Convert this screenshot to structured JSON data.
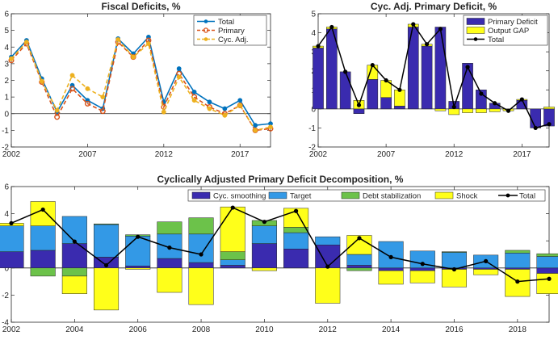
{
  "chart_data": [
    {
      "id": "fiscal",
      "type": "line",
      "title": "Fiscal Deficits, %",
      "x": [
        2002,
        2003,
        2004,
        2005,
        2006,
        2007,
        2008,
        2009,
        2010,
        2011,
        2012,
        2013,
        2014,
        2015,
        2016,
        2017,
        2018,
        2019
      ],
      "xticks": [
        2002,
        2007,
        2012,
        2017
      ],
      "xlim": [
        2002,
        2019
      ],
      "ylim": [
        -2,
        6
      ],
      "yticks": [
        -2,
        -1,
        0,
        1,
        2,
        3,
        4,
        5,
        6
      ],
      "grid": false,
      "legend_position": "top-right",
      "series": [
        {
          "name": "Total",
          "color": "#0072BD",
          "style": "solid",
          "marker": "dot",
          "values": [
            3.4,
            4.4,
            2.1,
            0.1,
            1.7,
            0.8,
            0.3,
            4.5,
            3.6,
            4.6,
            0.7,
            2.7,
            1.3,
            0.7,
            0.3,
            0.8,
            -0.7,
            -0.6
          ]
        },
        {
          "name": "Primary",
          "color": "#D95319",
          "style": "dashed",
          "marker": "ring",
          "values": [
            3.2,
            4.2,
            1.9,
            -0.2,
            1.5,
            0.6,
            0.15,
            4.3,
            3.4,
            4.4,
            0.4,
            2.4,
            1.0,
            0.4,
            0.0,
            0.5,
            -1.0,
            -0.9
          ]
        },
        {
          "name": "Cyc. Adj.",
          "color": "#EDB120",
          "style": "dashed",
          "marker": "dot",
          "values": [
            3.3,
            4.3,
            1.95,
            0.2,
            2.3,
            1.5,
            1.0,
            4.45,
            3.4,
            4.2,
            0.1,
            2.2,
            0.8,
            0.3,
            -0.1,
            0.5,
            -1.0,
            -0.8
          ]
        }
      ]
    },
    {
      "id": "cyc",
      "type": "bar",
      "stacked": true,
      "title": "Cyc. Adj. Primary Deficit, %",
      "x": [
        2002,
        2003,
        2004,
        2005,
        2006,
        2007,
        2008,
        2009,
        2010,
        2011,
        2012,
        2013,
        2014,
        2015,
        2016,
        2017,
        2018,
        2019
      ],
      "xticks": [
        2002,
        2007,
        2012,
        2017
      ],
      "xlim": [
        2002,
        2019
      ],
      "ylim": [
        -2,
        5
      ],
      "yticks": [
        -2,
        -1,
        0,
        1,
        2,
        3,
        4,
        5
      ],
      "grid": false,
      "legend_position": "top-right",
      "series": [
        {
          "name": "Primary Deficit",
          "color": "#3A2BAF",
          "values": [
            3.2,
            4.2,
            1.95,
            -0.25,
            1.55,
            0.6,
            0.15,
            4.3,
            3.3,
            4.3,
            0.4,
            2.4,
            1.0,
            0.3,
            0.0,
            0.45,
            -1.0,
            -0.9
          ]
        },
        {
          "name": "Output GAP",
          "color": "#FFFF1A",
          "values": [
            0.1,
            0.1,
            0.0,
            0.45,
            0.75,
            0.9,
            0.85,
            0.15,
            0.1,
            -0.1,
            -0.3,
            -0.2,
            -0.2,
            -0.15,
            -0.1,
            0.05,
            0.0,
            0.1
          ]
        }
      ],
      "line": {
        "name": "Total",
        "color": "#000000",
        "values": [
          3.3,
          4.3,
          1.95,
          0.2,
          2.3,
          1.5,
          1.0,
          4.45,
          3.4,
          4.2,
          0.1,
          2.2,
          0.8,
          0.3,
          -0.1,
          0.5,
          -1.0,
          -0.8
        ]
      }
    },
    {
      "id": "decomp",
      "type": "bar",
      "stacked": true,
      "title": "Cyclically Adjusted Primary Deficit Decomposition, %",
      "x": [
        2002,
        2003,
        2004,
        2005,
        2006,
        2007,
        2008,
        2009,
        2010,
        2011,
        2012,
        2013,
        2014,
        2015,
        2016,
        2017,
        2018,
        2019
      ],
      "xticks": [
        2002,
        2004,
        2006,
        2008,
        2010,
        2012,
        2014,
        2016,
        2018
      ],
      "xlim": [
        2002,
        2019
      ],
      "ylim": [
        -4,
        6
      ],
      "yticks": [
        -4,
        -2,
        0,
        2,
        4,
        6
      ],
      "grid": false,
      "legend_position": "top",
      "series": [
        {
          "name": "Cyc. smoothing",
          "color": "#3A2BAF",
          "values": [
            1.2,
            1.3,
            1.8,
            0.8,
            0.15,
            0.7,
            0.4,
            0.2,
            1.8,
            1.4,
            1.7,
            0.2,
            -0.2,
            -0.2,
            -0.1,
            -0.1,
            -0.1,
            -0.4
          ]
        },
        {
          "name": "Target",
          "color": "#3399E6",
          "values": [
            1.9,
            1.8,
            2.0,
            2.4,
            2.2,
            1.8,
            2.1,
            0.4,
            1.3,
            1.2,
            0.6,
            0.8,
            1.95,
            1.25,
            1.15,
            0.95,
            1.1,
            0.85
          ]
        },
        {
          "name": "Debt stabilization",
          "color": "#6CC24A",
          "values": [
            0.0,
            -0.6,
            -0.6,
            0.05,
            0.1,
            0.9,
            1.2,
            0.6,
            0.4,
            0.4,
            0.0,
            -0.2,
            0.0,
            0.0,
            0.05,
            0.0,
            0.2,
            0.2
          ]
        },
        {
          "name": "Shock",
          "color": "#FFFF1A",
          "values": [
            0.2,
            1.8,
            -1.3,
            -3.1,
            -0.1,
            -1.8,
            -2.7,
            3.3,
            -0.2,
            1.4,
            -2.6,
            1.4,
            -1.0,
            -0.9,
            -1.3,
            -0.4,
            -2.0,
            -1.5
          ]
        }
      ],
      "line": {
        "name": "Total",
        "color": "#000000",
        "values": [
          3.3,
          4.3,
          1.95,
          0.2,
          2.3,
          1.5,
          1.0,
          4.45,
          3.4,
          4.2,
          0.1,
          2.2,
          0.8,
          0.3,
          -0.1,
          0.5,
          -1.0,
          -0.8
        ]
      }
    }
  ]
}
